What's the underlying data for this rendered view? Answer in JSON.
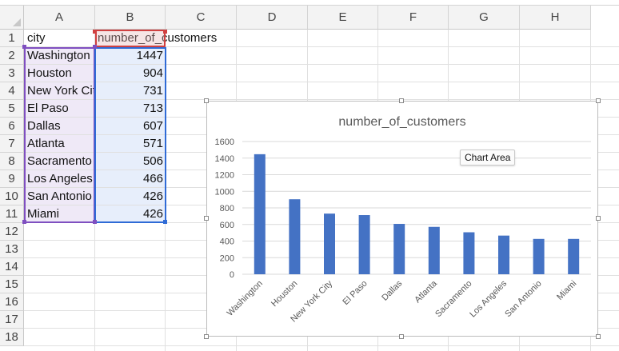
{
  "columns": [
    "A",
    "B",
    "C",
    "D",
    "E",
    "F",
    "G",
    "H"
  ],
  "rows": [
    "1",
    "2",
    "3",
    "4",
    "5",
    "6",
    "7",
    "8",
    "9",
    "10",
    "11",
    "12",
    "13",
    "14",
    "15",
    "16",
    "17",
    "18"
  ],
  "sheet": {
    "header_a": "city",
    "header_b": "number_of_customers",
    "data": [
      {
        "city": "Washington",
        "customers": "1447"
      },
      {
        "city": "Houston",
        "customers": "904"
      },
      {
        "city": "New York City",
        "customers": "731"
      },
      {
        "city": "El Paso",
        "customers": "713"
      },
      {
        "city": "Dallas",
        "customers": "607"
      },
      {
        "city": "Atlanta",
        "customers": "571"
      },
      {
        "city": "Sacramento",
        "customers": "506"
      },
      {
        "city": "Los Angeles",
        "customers": "466"
      },
      {
        "city": "San Antonio",
        "customers": "426"
      },
      {
        "city": "Miami",
        "customers": "426"
      }
    ]
  },
  "tooltip": "Chart Area",
  "colors": {
    "bar": "#4472c4",
    "selection_a": "#7f4fc0",
    "selection_b": "#2f6bd6",
    "header_red": "#d04040"
  },
  "chart_data": {
    "type": "bar",
    "title": "number_of_customers",
    "categories": [
      "Washington",
      "Houston",
      "New York City",
      "El Paso",
      "Dallas",
      "Atlanta",
      "Sacramento",
      "Los Angeles",
      "San Antonio",
      "Miami"
    ],
    "values": [
      1447,
      904,
      731,
      713,
      607,
      571,
      506,
      466,
      426,
      426
    ],
    "ylim": [
      0,
      1600
    ],
    "yticks": [
      "0",
      "200",
      "400",
      "600",
      "800",
      "1000",
      "1200",
      "1400",
      "1600"
    ],
    "grid": true,
    "legend": "none"
  }
}
